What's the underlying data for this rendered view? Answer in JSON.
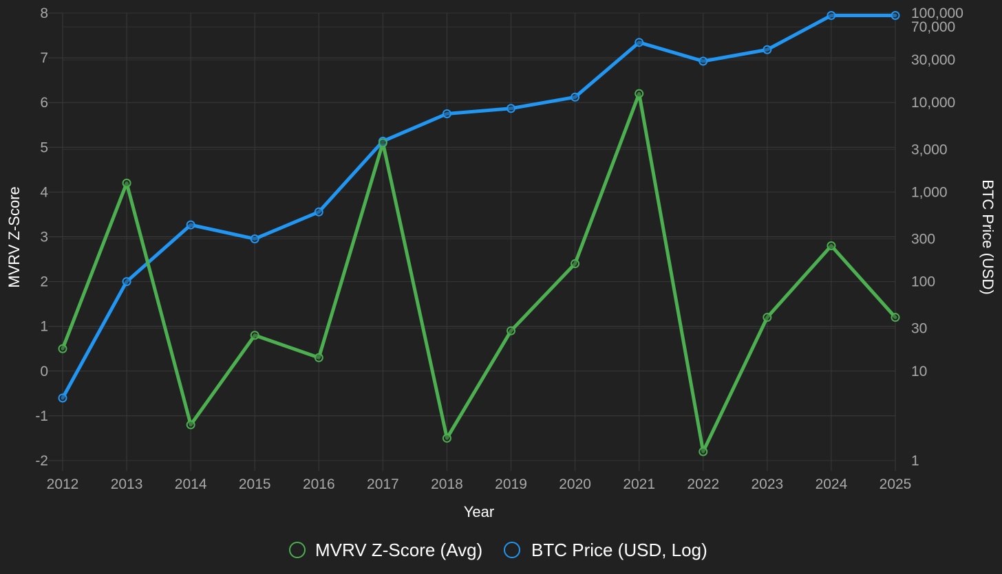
{
  "chart_data": {
    "type": "line",
    "x": [
      "2012",
      "2013",
      "2014",
      "2015",
      "2016",
      "2017",
      "2018",
      "2019",
      "2020",
      "2021",
      "2022",
      "2023",
      "2024",
      "2025"
    ],
    "xlabel": "Year",
    "y_left": {
      "label": "MVRV Z-Score",
      "lim": [
        -2,
        8
      ],
      "ticks": [
        "-2",
        "-1",
        "0",
        "1",
        "2",
        "3",
        "4",
        "5",
        "6",
        "7",
        "8"
      ]
    },
    "y_right": {
      "label": "BTC Price (USD)",
      "scale": "log",
      "lim": [
        1,
        100000
      ],
      "ticks": [
        {
          "value": 1,
          "label": "1"
        },
        {
          "value": 10,
          "label": "10"
        },
        {
          "value": 30,
          "label": "30"
        },
        {
          "value": 100,
          "label": "100"
        },
        {
          "value": 300,
          "label": "300"
        },
        {
          "value": 1000,
          "label": "1,000"
        },
        {
          "value": 3000,
          "label": "3,000"
        },
        {
          "value": 10000,
          "label": "10,000"
        },
        {
          "value": 30000,
          "label": "30,000"
        },
        {
          "value": 70000,
          "label": "70,000"
        },
        {
          "value": 100000,
          "label": "100,000"
        }
      ]
    },
    "series": [
      {
        "name": "MVRV Z-Score (Avg)",
        "axis": "left",
        "color": "#4caf50",
        "values": [
          0.5,
          4.2,
          -1.2,
          0.8,
          0.3,
          5.1,
          -1.5,
          0.9,
          2.4,
          6.2,
          -1.8,
          1.2,
          2.8,
          1.2
        ]
      },
      {
        "name": "BTC Price (USD, Log)",
        "axis": "right",
        "color": "#2196f3",
        "values": [
          5,
          100,
          430,
          300,
          600,
          3700,
          7500,
          8600,
          11500,
          47000,
          29000,
          39000,
          94000,
          94000
        ]
      }
    ],
    "legend_position": "bottom-center",
    "grid": true
  }
}
